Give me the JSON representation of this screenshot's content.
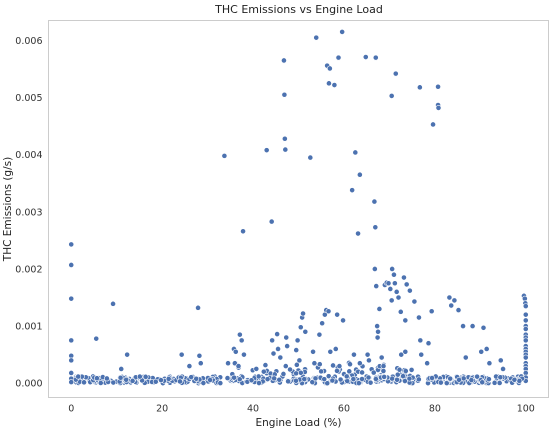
{
  "chart_data": {
    "type": "scatter",
    "title": "THC Emissions vs Engine Load",
    "xlabel": "Engine Load (%)",
    "ylabel": "THC Emissions (g/s)",
    "xlim": [
      -5,
      105
    ],
    "ylim": [
      -0.00025,
      0.00635
    ],
    "xticks": [
      0,
      20,
      40,
      60,
      80,
      100
    ],
    "xtick_labels": [
      "0",
      "20",
      "40",
      "60",
      "80",
      "100"
    ],
    "yticks": [
      0,
      0.001,
      0.002,
      0.003,
      0.004,
      0.005,
      0.006
    ],
    "ytick_labels": [
      "0.000",
      "0.001",
      "0.002",
      "0.003",
      "0.004",
      "0.005",
      "0.006"
    ],
    "grid": false,
    "color": "#4c72b0",
    "series": [
      {
        "points": [
          [
            0,
            0.00243
          ],
          [
            0,
            0.00207
          ],
          [
            0,
            0.00148
          ],
          [
            0,
            0.00075
          ],
          [
            0,
            0.00048
          ],
          [
            0,
            0.0004
          ],
          [
            0,
            0.00018
          ],
          [
            0,
            8e-05
          ],
          [
            0,
            2e-05
          ],
          [
            5.5,
            0.00078
          ],
          [
            9.2,
            0.00139
          ],
          [
            12.3,
            0.0005
          ],
          [
            11,
            0.00025
          ],
          [
            24.3,
            0.0005
          ],
          [
            27.9,
            0.00132
          ],
          [
            28.2,
            0.00048
          ],
          [
            28.5,
            0.00035
          ],
          [
            26,
            0.0003
          ],
          [
            33.7,
            0.00398
          ],
          [
            34.5,
            0.00035
          ],
          [
            35.8,
            0.0006
          ],
          [
            36.2,
            0.00055
          ],
          [
            36,
            0.00035
          ],
          [
            37.1,
            0.00085
          ],
          [
            37.5,
            0.00075
          ],
          [
            37.8,
            0.00266
          ],
          [
            38,
            0.0005
          ],
          [
            36.8,
            0.0003
          ],
          [
            43.0,
            0.00408
          ],
          [
            44.1,
            0.00283
          ],
          [
            44.2,
            0.00075
          ],
          [
            45.3,
            0.00086
          ],
          [
            45.5,
            0.0006
          ],
          [
            46,
            0.00045
          ],
          [
            44.5,
            0.00052
          ],
          [
            46.8,
            0.00565
          ],
          [
            46.9,
            0.00505
          ],
          [
            47.0,
            0.00428
          ],
          [
            47.1,
            0.00409
          ],
          [
            47.3,
            0.0008
          ],
          [
            47.5,
            0.00065
          ],
          [
            47.2,
            0.0003
          ],
          [
            49.5,
            0.00058
          ],
          [
            49.8,
            0.00075
          ],
          [
            50.5,
            0.00098
          ],
          [
            50.8,
            0.00115
          ],
          [
            51.0,
            0.00122
          ],
          [
            51.5,
            0.0009
          ],
          [
            50.2,
            0.0004
          ],
          [
            52.6,
            0.00395
          ],
          [
            53.2,
            0.00055
          ],
          [
            53.5,
            0.00035
          ],
          [
            53.9,
            0.00605
          ],
          [
            54.6,
            0.00085
          ],
          [
            55.2,
            0.00105
          ],
          [
            55.8,
            0.0012
          ],
          [
            56.1,
            0.00128
          ],
          [
            56.6,
            0.00126
          ],
          [
            57.0,
            0.00055
          ],
          [
            56.3,
            0.00556
          ],
          [
            56.9,
            0.00551
          ],
          [
            56.7,
            0.00525
          ],
          [
            57.9,
            0.00522
          ],
          [
            58.8,
            0.0057
          ],
          [
            59.6,
            0.00615
          ],
          [
            58.5,
            0.0012
          ],
          [
            59.8,
            0.0011
          ],
          [
            58.2,
            0.0006
          ],
          [
            59,
            0.0003
          ],
          [
            61.8,
            0.00338
          ],
          [
            62.5,
            0.00404
          ],
          [
            63.5,
            0.00365
          ],
          [
            63.1,
            0.00262
          ],
          [
            62.2,
            0.0005
          ],
          [
            63.5,
            0.00035
          ],
          [
            64.8,
            0.00571
          ],
          [
            65.5,
            0.0004
          ],
          [
            65.2,
            0.0005
          ],
          [
            67.0,
            0.0057
          ],
          [
            66.7,
            0.00318
          ],
          [
            66.9,
            0.00273
          ],
          [
            66.8,
            0.002
          ],
          [
            67.1,
            0.0017
          ],
          [
            67.3,
            0.001
          ],
          [
            67.5,
            0.0009
          ],
          [
            67.4,
            0.0008
          ],
          [
            67.8,
            0.0013
          ],
          [
            68.3,
            0.00045
          ],
          [
            68.7,
            0.0003
          ],
          [
            69.0,
            0.00172
          ],
          [
            69.4,
            0.00176
          ],
          [
            69.8,
            0.00175
          ],
          [
            70.2,
            0.00165
          ],
          [
            70.5,
            0.00145
          ],
          [
            70.5,
            0.00503
          ],
          [
            71.4,
            0.00542
          ],
          [
            70.6,
            0.002
          ],
          [
            71.0,
            0.0019
          ],
          [
            71.2,
            0.00175
          ],
          [
            71.6,
            0.0016
          ],
          [
            72,
            0.0015
          ],
          [
            72.5,
            0.00125
          ],
          [
            73.2,
            0.00185
          ],
          [
            73.8,
            0.00173
          ],
          [
            73.5,
            0.0011
          ],
          [
            72.6,
            0.0005
          ],
          [
            73.5,
            0.00055
          ],
          [
            74.5,
            0.00162
          ],
          [
            75.5,
            0.00143
          ],
          [
            76.5,
            0.00115
          ],
          [
            76.8,
            0.00075
          ],
          [
            77,
            0.0005
          ],
          [
            78.3,
            0.00035
          ],
          [
            78.6,
            0.0007
          ],
          [
            79.3,
            0.00126
          ],
          [
            79.6,
            0.00453
          ],
          [
            76.7,
            0.00518
          ],
          [
            80.7,
            0.00519
          ],
          [
            80.7,
            0.00487
          ],
          [
            80.8,
            0.00482
          ],
          [
            83.2,
            0.0015
          ],
          [
            83.6,
            0.00136
          ],
          [
            84.3,
            0.00145
          ],
          [
            85.2,
            0.00128
          ],
          [
            86.2,
            0.001
          ],
          [
            86.8,
            0.00045
          ],
          [
            88.3,
            0.001
          ],
          [
            90.7,
            0.00097
          ],
          [
            90.2,
            0.00055
          ],
          [
            91.4,
            0.0006
          ],
          [
            92,
            0.00035
          ],
          [
            94.5,
            0.0004
          ],
          [
            95,
            0.00025
          ],
          [
            99.6,
            0.00153
          ],
          [
            99.8,
            0.00148
          ],
          [
            99.9,
            0.0014
          ],
          [
            100,
            0.00135
          ],
          [
            100,
            0.0012
          ],
          [
            100,
            0.0011
          ],
          [
            100,
            0.001
          ],
          [
            100,
            0.00095
          ],
          [
            100,
            0.00085
          ],
          [
            100,
            0.0008
          ],
          [
            100,
            0.00075
          ],
          [
            100,
            0.00065
          ],
          [
            100,
            0.0006
          ],
          [
            100,
            0.00055
          ],
          [
            100,
            0.0005
          ],
          [
            100,
            0.00045
          ],
          [
            100,
            0.00035
          ],
          [
            100,
            0.0003
          ],
          [
            100,
            0.00025
          ],
          [
            100,
            0.00018
          ],
          [
            100,
            0.0001
          ],
          [
            100,
            4e-05
          ],
          [
            99.2,
            8e-05
          ],
          [
            98.6,
            4e-05
          ],
          [
            97.5,
            6e-05
          ]
        ]
      }
    ],
    "baseline_band": {
      "x_range": [
        1,
        99
      ],
      "y_range": [
        0,
        0.00012
      ]
    }
  }
}
